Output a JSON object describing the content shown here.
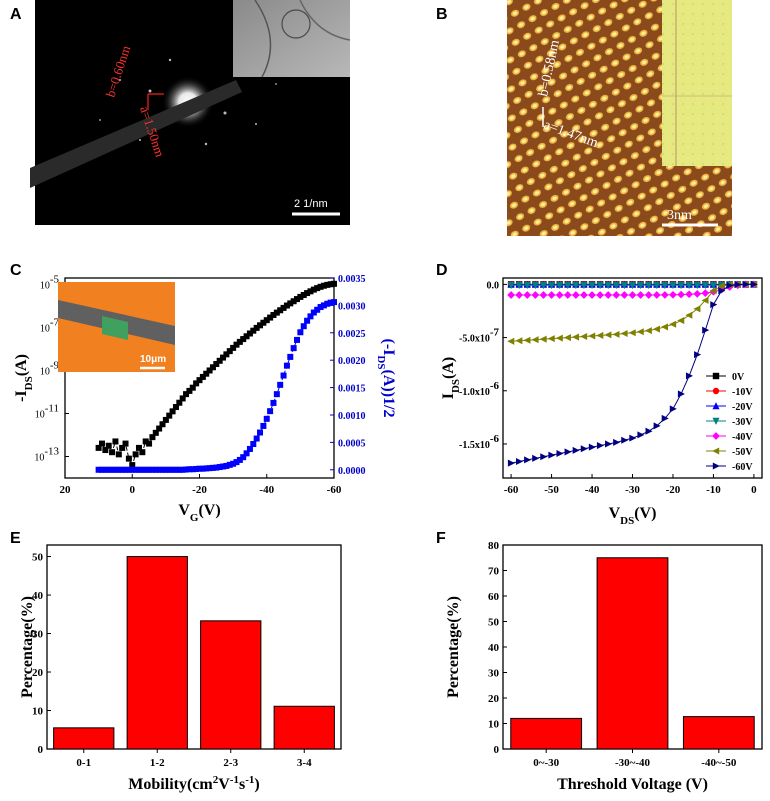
{
  "panels": {
    "A": {
      "label": "A",
      "lattice_b": "b=0.60nm",
      "lattice_a": "a=1.50nm",
      "scalebar": "2 1/nm"
    },
    "B": {
      "label": "B",
      "lattice_b": "b=0.58nm",
      "lattice_a": "a=1.47nm",
      "scalebar": "3nm"
    },
    "C": {
      "label": "C",
      "inset_scalebar": "10μm"
    },
    "D": {
      "label": "D"
    },
    "E": {
      "label": "E"
    },
    "F": {
      "label": "F"
    }
  },
  "colors": {
    "black_series": "#000000",
    "blue_series": "#0000ff",
    "bar_fill": "#ff0000",
    "axis_blue": "#0000cc"
  },
  "chart_data": [
    {
      "id": "C",
      "type": "scatter",
      "title": "",
      "xlabel": "V",
      "xlabel_sub": "G",
      "xlabel_suffix": "(V)",
      "ylabel_left": "-I",
      "ylabel_left_sub": "DS",
      "ylabel_left_suffix": "(A)",
      "ylabel_right": "(-I",
      "ylabel_right_sub": "DS",
      "ylabel_right_suffix": "(A))1/2",
      "xlim": [
        20,
        -60
      ],
      "x_ticks": [
        "20",
        "0",
        "-20",
        "-40",
        "-60"
      ],
      "x_tick_values": [
        20,
        0,
        -20,
        -40,
        -60
      ],
      "y_left_log_range": [
        -14,
        -4.7
      ],
      "y_left_ticks": [
        {
          "base": "10",
          "exp": "-5",
          "v": -5
        },
        {
          "base": "10",
          "exp": "-7",
          "v": -7
        },
        {
          "base": "10",
          "exp": "-9",
          "v": -9
        },
        {
          "base": "10",
          "exp": "-11",
          "v": -11
        },
        {
          "base": "10",
          "exp": "-13",
          "v": -13
        }
      ],
      "y_right_lim": [
        -0.00015,
        0.0035
      ],
      "y_right_ticks": [
        "0.0000",
        "0.0005",
        "0.0010",
        "0.0015",
        "0.0020",
        "0.0025",
        "0.0030",
        "0.0035"
      ],
      "y_right_tick_values": [
        0,
        0.0005,
        0.001,
        0.0015,
        0.002,
        0.0025,
        0.003,
        0.0035
      ],
      "series": [
        {
          "name": "log -IDS",
          "axis": "left",
          "x": [
            10,
            9,
            8,
            7,
            6,
            5,
            4,
            3,
            2,
            1,
            0,
            -1,
            -2,
            -3,
            -4,
            -5,
            -6,
            -7,
            -8,
            -9,
            -10,
            -11,
            -12,
            -13,
            -14,
            -15,
            -16,
            -17,
            -18,
            -19,
            -20,
            -21,
            -22,
            -23,
            -24,
            -25,
            -26,
            -27,
            -28,
            -29,
            -30,
            -31,
            -32,
            -33,
            -34,
            -35,
            -36,
            -37,
            -38,
            -39,
            -40,
            -41,
            -42,
            -43,
            -44,
            -45,
            -46,
            -47,
            -48,
            -49,
            -50,
            -51,
            -52,
            -53,
            -54,
            -55,
            -56,
            -57,
            -58,
            -59,
            -60
          ],
          "y": [
            -12.6,
            -12.4,
            -12.7,
            -12.5,
            -12.8,
            -12.3,
            -12.9,
            -12.6,
            -12.4,
            -13.1,
            -13.4,
            -12.9,
            -12.6,
            -12.8,
            -12.3,
            -12.4,
            -12.1,
            -11.9,
            -11.7,
            -11.5,
            -11.3,
            -11.1,
            -10.9,
            -10.7,
            -10.5,
            -10.3,
            -10.1,
            -9.95,
            -9.8,
            -9.6,
            -9.45,
            -9.3,
            -9.15,
            -9.0,
            -8.85,
            -8.7,
            -8.55,
            -8.4,
            -8.25,
            -8.1,
            -7.95,
            -7.8,
            -7.67,
            -7.54,
            -7.41,
            -7.28,
            -7.15,
            -7.02,
            -6.9,
            -6.78,
            -6.66,
            -6.54,
            -6.42,
            -6.31,
            -6.2,
            -6.09,
            -5.98,
            -5.88,
            -5.78,
            -5.68,
            -5.58,
            -5.49,
            -5.4,
            -5.32,
            -5.24,
            -5.17,
            -5.11,
            -5.06,
            -5.02,
            -4.99,
            -4.97
          ]
        },
        {
          "name": "sqrt -IDS",
          "axis": "right",
          "x": [
            10,
            9,
            8,
            7,
            6,
            5,
            4,
            3,
            2,
            1,
            0,
            -1,
            -2,
            -3,
            -4,
            -5,
            -6,
            -7,
            -8,
            -9,
            -10,
            -11,
            -12,
            -13,
            -14,
            -15,
            -16,
            -17,
            -18,
            -19,
            -20,
            -21,
            -22,
            -23,
            -24,
            -25,
            -26,
            -27,
            -28,
            -29,
            -30,
            -31,
            -32,
            -33,
            -34,
            -35,
            -36,
            -37,
            -38,
            -39,
            -40,
            -41,
            -42,
            -43,
            -44,
            -45,
            -46,
            -47,
            -48,
            -49,
            -50,
            -51,
            -52,
            -53,
            -54,
            -55,
            -56,
            -57,
            -58,
            -59,
            -60
          ],
          "y": [
            0,
            0,
            0,
            0,
            0,
            0,
            0,
            0,
            0,
            0,
            0,
            0,
            0,
            0,
            0,
            0,
            0,
            0,
            0,
            0,
            0,
            0,
            0,
            0,
            0,
            0,
            5e-06,
            1e-05,
            1e-05,
            1.5e-05,
            2e-05,
            2e-05,
            2.5e-05,
            3e-05,
            3.5e-05,
            4e-05,
            5e-05,
            6e-05,
            7e-05,
            9e-05,
            0.00011,
            0.00014,
            0.00018,
            0.00023,
            0.0003,
            0.00038,
            0.00047,
            0.00057,
            0.00068,
            0.0008,
            0.00093,
            0.00107,
            0.00122,
            0.00138,
            0.00155,
            0.00172,
            0.0019,
            0.00206,
            0.00222,
            0.00237,
            0.00251,
            0.00262,
            0.00272,
            0.0028,
            0.00287,
            0.00292,
            0.00297,
            0.003,
            0.00303,
            0.00305,
            0.00306
          ]
        }
      ]
    },
    {
      "id": "D",
      "type": "line",
      "title": "",
      "xlabel": "V",
      "xlabel_sub": "DS",
      "xlabel_suffix": "(V)",
      "ylabel": "I",
      "ylabel_sub": "DS",
      "ylabel_suffix": "(A)",
      "xlim": [
        -62,
        2
      ],
      "ylim": [
        -1.82e-06,
        6e-08
      ],
      "x_ticks": [
        "-60",
        "-50",
        "-40",
        "-30",
        "-20",
        "-10",
        "0"
      ],
      "x_tick_values": [
        -60,
        -50,
        -40,
        -30,
        -20,
        -10,
        0
      ],
      "y_ticks": [
        {
          "m": "0.0",
          "e": "",
          "v": 0
        },
        {
          "m": "-5.0x10",
          "e": "-7",
          "v": -5e-07
        },
        {
          "m": "-1.0x10",
          "e": "-6",
          "v": -1e-06
        },
        {
          "m": "-1.5x10",
          "e": "-6",
          "v": -1.5e-06
        }
      ],
      "x": [
        -60,
        -58,
        -56,
        -54,
        -52,
        -50,
        -48,
        -46,
        -44,
        -42,
        -40,
        -38,
        -36,
        -34,
        -32,
        -30,
        -28,
        -26,
        -24,
        -22,
        -20,
        -18,
        -16,
        -14,
        -12,
        -10,
        -8,
        -6,
        -4,
        -2,
        0
      ],
      "series": [
        {
          "name": "0V",
          "color": "#000000",
          "marker": "square",
          "y": [
            -1e-10,
            -1e-10,
            -1e-10,
            -1e-10,
            -1e-10,
            -1e-10,
            -1e-10,
            -1e-10,
            -1e-10,
            -1e-10,
            -1e-10,
            -1e-10,
            -1e-10,
            -1e-10,
            -1e-10,
            -1e-10,
            -1e-10,
            -1e-10,
            -1e-10,
            -1e-10,
            -1e-10,
            -1e-10,
            -1e-10,
            -1e-10,
            -1e-10,
            -1e-10,
            -1e-10,
            -1e-10,
            -1e-10,
            -1e-10,
            0
          ]
        },
        {
          "name": "-10V",
          "color": "#ff0000",
          "marker": "circle",
          "y": [
            -5e-10,
            -5e-10,
            -5e-10,
            -5e-10,
            -5e-10,
            -5e-10,
            -5e-10,
            -5e-10,
            -5e-10,
            -5e-10,
            -5e-10,
            -5e-10,
            -5e-10,
            -5e-10,
            -5e-10,
            -5e-10,
            -5e-10,
            -5e-10,
            -5e-10,
            -5e-10,
            -5e-10,
            -5e-10,
            -5e-10,
            -5e-10,
            -5e-10,
            -5e-10,
            -3e-10,
            -2e-10,
            -1e-10,
            0,
            0
          ]
        },
        {
          "name": "-20V",
          "color": "#0000ff",
          "marker": "triangle-up",
          "y": [
            -2e-09,
            -2e-09,
            -2e-09,
            -2e-09,
            -2e-09,
            -2e-09,
            -2e-09,
            -2e-09,
            -2e-09,
            -2e-09,
            -2e-09,
            -2e-09,
            -2e-09,
            -2e-09,
            -2e-09,
            -2e-09,
            -2e-09,
            -2e-09,
            -2e-09,
            -2e-09,
            -2e-09,
            -2e-09,
            -2e-09,
            -2e-09,
            -2e-09,
            -2e-09,
            -1.5e-09,
            -1e-09,
            -5e-10,
            0,
            0
          ]
        },
        {
          "name": "-30V",
          "color": "#008080",
          "marker": "triangle-down",
          "y": [
            -8e-09,
            -8e-09,
            -8e-09,
            -8e-09,
            -8e-09,
            -8e-09,
            -8e-09,
            -8e-09,
            -8e-09,
            -8e-09,
            -8e-09,
            -8e-09,
            -8e-09,
            -8e-09,
            -8e-09,
            -8e-09,
            -8e-09,
            -8e-09,
            -8e-09,
            -8e-09,
            -8e-09,
            -8e-09,
            -8e-09,
            -8e-09,
            -8e-09,
            -7.5e-09,
            -6e-09,
            -4e-09,
            -2e-09,
            -5e-10,
            0
          ]
        },
        {
          "name": "-40V",
          "color": "#ff00ff",
          "marker": "diamond",
          "y": [
            -1e-07,
            -1e-07,
            -1e-07,
            -1e-07,
            -1e-07,
            -1e-07,
            -1e-07,
            -1e-07,
            -1e-07,
            -1e-07,
            -1e-07,
            -1e-07,
            -1e-07,
            -1e-07,
            -1e-07,
            -1e-07,
            -1e-07,
            -1e-07,
            -1e-07,
            -9.9e-08,
            -9.8e-08,
            -9.6e-08,
            -9.3e-08,
            -8.9e-08,
            -8.2e-08,
            -7e-08,
            -5e-08,
            -2.5e-08,
            -8e-09,
            -1e-09,
            0
          ]
        },
        {
          "name": "-50V",
          "color": "#808000",
          "marker": "triangle-left",
          "y": [
            -5.35e-07,
            -5.3e-07,
            -5.25e-07,
            -5.2e-07,
            -5.15e-07,
            -5.1e-07,
            -5.05e-07,
            -5e-07,
            -4.95e-07,
            -4.9e-07,
            -4.85e-07,
            -4.8e-07,
            -4.75e-07,
            -4.7e-07,
            -4.62e-07,
            -4.55e-07,
            -4.45e-07,
            -4.35e-07,
            -4.2e-07,
            -4e-07,
            -3.75e-07,
            -3.4e-07,
            -2.9e-07,
            -2.3e-07,
            -1.5e-07,
            -6e-08,
            -1.5e-08,
            -3e-09,
            -5e-10,
            0,
            0
          ]
        },
        {
          "name": "-60V",
          "color": "#000080",
          "marker": "triangle-right",
          "y": [
            -1.68e-06,
            -1.665e-06,
            -1.65e-06,
            -1.635e-06,
            -1.62e-06,
            -1.605e-06,
            -1.59e-06,
            -1.575e-06,
            -1.56e-06,
            -1.545e-06,
            -1.53e-06,
            -1.515e-06,
            -1.5e-06,
            -1.485e-06,
            -1.465e-06,
            -1.445e-06,
            -1.415e-06,
            -1.38e-06,
            -1.33e-06,
            -1.26e-06,
            -1.17e-06,
            -1.03e-06,
            -8.6e-07,
            -6.6e-07,
            -4.3e-07,
            -1.9e-07,
            -6e-08,
            -1e-08,
            -2e-09,
            0,
            0
          ]
        }
      ]
    },
    {
      "id": "E",
      "type": "bar",
      "title": "",
      "categories": [
        "0-1",
        "1-2",
        "2-3",
        "3-4"
      ],
      "values": [
        5.5,
        50,
        33.3,
        11.1
      ],
      "xlabel": "Mobility(cm",
      "xlabel_sup1": "2",
      "xlabel_mid": "V",
      "xlabel_sup2": "-1",
      "xlabel_mid2": "s",
      "xlabel_sup3": "-1",
      "xlabel_end": ")",
      "ylabel": "Percentage(%)",
      "ylim": [
        0,
        53
      ],
      "y_ticks": [
        "0",
        "10",
        "20",
        "30",
        "40",
        "50"
      ],
      "y_tick_values": [
        0,
        10,
        20,
        30,
        40,
        50
      ]
    },
    {
      "id": "F",
      "type": "bar",
      "title": "",
      "categories": [
        "0~-30",
        "-30~-40",
        "-40~-50"
      ],
      "values": [
        12,
        75,
        12.7
      ],
      "xlabel": "Threshold Voltage (V)",
      "ylabel": "Percentage(%)",
      "ylim": [
        0,
        80
      ],
      "y_ticks": [
        "0",
        "10",
        "20",
        "30",
        "40",
        "50",
        "60",
        "70",
        "80"
      ],
      "y_tick_values": [
        0,
        10,
        20,
        30,
        40,
        50,
        60,
        70,
        80
      ]
    }
  ]
}
